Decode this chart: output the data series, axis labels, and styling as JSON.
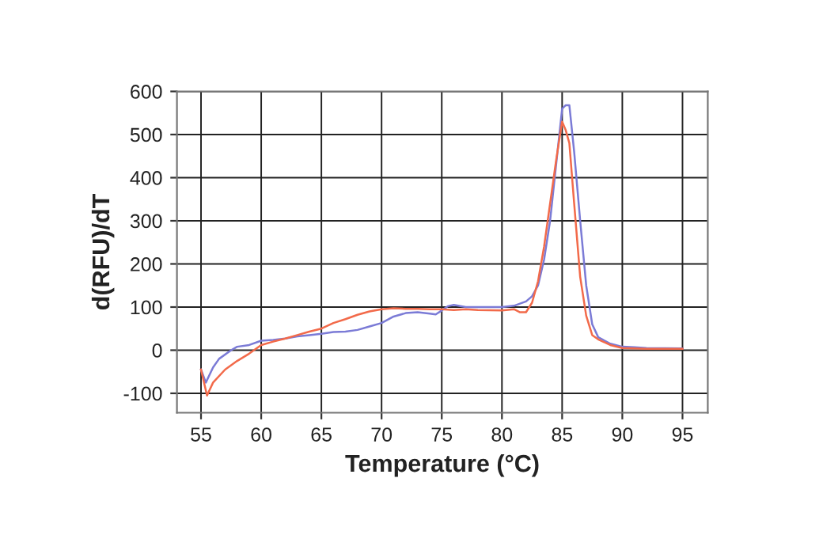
{
  "chart_data": {
    "type": "line",
    "xlabel": "Temperature (°C)",
    "ylabel": "d(RFU)/dT",
    "xlim": [
      53,
      97.1
    ],
    "ylim": [
      -145,
      600
    ],
    "xticks": [
      55,
      60,
      65,
      70,
      75,
      80,
      85,
      90,
      95
    ],
    "yticks": [
      -100,
      0,
      100,
      200,
      300,
      400,
      500,
      600
    ],
    "grid": true,
    "legend": false,
    "marker": "none",
    "line_style": "solid",
    "series": [
      {
        "color": "#7b7bd6",
        "x": [
          55,
          55.4,
          56,
          56.5,
          57.5,
          58,
          59,
          60,
          61,
          62,
          63,
          64,
          65,
          66,
          67,
          68,
          69,
          70,
          71,
          72,
          73,
          74,
          74.5,
          75,
          75.5,
          76,
          77,
          78,
          80,
          81,
          82,
          82.5,
          83,
          83.5,
          84,
          84.5,
          85,
          85.3,
          85.6,
          86,
          86.5,
          87,
          87.5,
          88,
          89,
          90,
          91,
          92,
          95
        ],
        "values": [
          -45,
          -75,
          -40,
          -20,
          0,
          8,
          12,
          22,
          24,
          27,
          32,
          35,
          38,
          42,
          43,
          47,
          55,
          63,
          78,
          86,
          88,
          85,
          83,
          92,
          102,
          105,
          100,
          100,
          100,
          103,
          113,
          125,
          150,
          210,
          300,
          430,
          560,
          568,
          568,
          460,
          300,
          150,
          60,
          30,
          15,
          8,
          7,
          5,
          4
        ]
      },
      {
        "color": "#f26a4a",
        "x": [
          55,
          55.5,
          56,
          57,
          58,
          59,
          60,
          61,
          62,
          63,
          64,
          65,
          66,
          67,
          68,
          69,
          70,
          71,
          72,
          73,
          74,
          75,
          76,
          77,
          78,
          80,
          81,
          81.5,
          82,
          82.5,
          83,
          83.5,
          84,
          84.5,
          85,
          85.3,
          85.6,
          86,
          86.5,
          87,
          87.5,
          88,
          89,
          90,
          92,
          95
        ],
        "values": [
          -45,
          -105,
          -75,
          -45,
          -25,
          -8,
          12,
          20,
          27,
          35,
          43,
          50,
          63,
          72,
          82,
          90,
          95,
          97,
          96,
          96,
          95,
          95,
          93,
          95,
          93,
          92,
          95,
          88,
          88,
          110,
          160,
          240,
          340,
          440,
          530,
          510,
          480,
          340,
          170,
          80,
          35,
          25,
          12,
          5,
          3,
          3
        ]
      }
    ]
  }
}
